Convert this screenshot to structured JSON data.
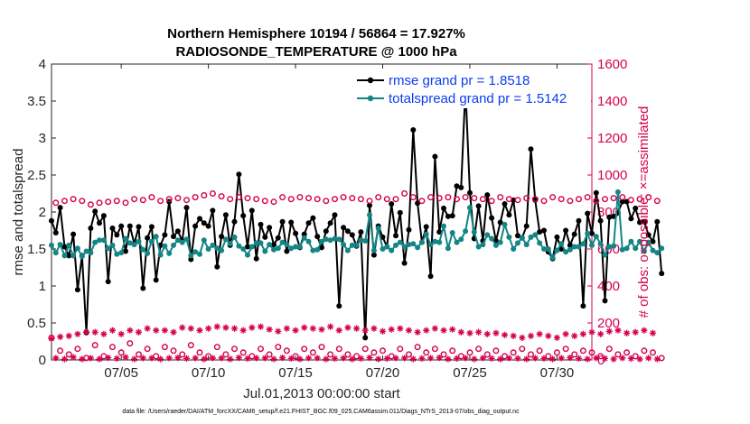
{
  "chart_data": {
    "type": "line",
    "title": "Northern Hemisphere 10194 / 56864 = 17.927%",
    "subtitle": "RADIOSONDE_TEMPERATURE @ 1000 hPa",
    "xlabel": "Jul.01,2013 00:00:00 start",
    "ylabel_left": "rmse and totalspread",
    "ylabel_right": "# of obs: o=possible; ×=assimilated",
    "x_range_days": [
      1.0,
      32.0
    ],
    "y_left_lim": [
      0,
      4
    ],
    "y_right_lim": [
      0,
      1600
    ],
    "x_ticks": [
      {
        "day": 5,
        "label": "07/05"
      },
      {
        "day": 10,
        "label": "07/10"
      },
      {
        "day": 15,
        "label": "07/15"
      },
      {
        "day": 20,
        "label": "07/20"
      },
      {
        "day": 25,
        "label": "07/25"
      },
      {
        "day": 30,
        "label": "07/30"
      }
    ],
    "y_left_ticks": [
      "0",
      "0.5",
      "1",
      "1.5",
      "2",
      "2.5",
      "3",
      "3.5",
      "4"
    ],
    "y_right_ticks": [
      "0",
      "200",
      "400",
      "600",
      "800",
      "1000",
      "1200",
      "1400",
      "1600"
    ],
    "x_start_day": 1.0,
    "x_step_days": 0.25,
    "series": [
      {
        "name": "rmse grand pr = 1.8518",
        "axis": "left",
        "color": "#000000",
        "marker": "filled-circle",
        "values": [
          1.88,
          1.72,
          2.06,
          1.53,
          1.41,
          1.7,
          0.95,
          1.41,
          0.37,
          1.78,
          2.01,
          1.85,
          1.95,
          1.06,
          1.78,
          1.69,
          1.81,
          1.47,
          1.81,
          1.57,
          1.8,
          0.97,
          1.65,
          1.8,
          1.08,
          1.55,
          1.69,
          2.14,
          1.67,
          1.74,
          1.61,
          2.06,
          1.36,
          1.81,
          1.91,
          1.85,
          1.81,
          2.02,
          1.26,
          1.67,
          1.96,
          1.55,
          1.87,
          2.51,
          1.95,
          1.53,
          2.02,
          1.37,
          1.83,
          1.66,
          1.79,
          1.56,
          1.65,
          1.87,
          1.47,
          1.86,
          1.71,
          1.52,
          1.7,
          1.85,
          1.92,
          1.67,
          1.52,
          1.74,
          1.85,
          1.96,
          0.73,
          1.79,
          1.74,
          1.69,
          1.54,
          1.73,
          0.3,
          2.09,
          1.42,
          1.81,
          1.66,
          1.53,
          2.11,
          1.68,
          1.99,
          1.31,
          1.76,
          3.11,
          2.12,
          1.59,
          1.8,
          1.13,
          2.75,
          1.73,
          2.05,
          1.94,
          1.95,
          2.35,
          2.33,
          3.68,
          2.26,
          1.64,
          2.08,
          1.61,
          2.23,
          1.92,
          1.61,
          1.86,
          2.11,
          1.96,
          2.16,
          1.68,
          1.65,
          1.81,
          2.85,
          2.16,
          1.73,
          1.75,
          1.46,
          1.37,
          1.66,
          1.5,
          1.75,
          1.55,
          1.7,
          1.88,
          0.73,
          1.98,
          1.71,
          2.26,
          1.88,
          0.8,
          1.93,
          1.94,
          1.99,
          2.14,
          2.14,
          1.91,
          2.05,
          1.86,
          1.87,
          1.69,
          1.6,
          1.87,
          1.17
        ]
      },
      {
        "name": "totalspread grand pr = 1.5142",
        "axis": "left",
        "color": "#148585",
        "marker": "filled-circle",
        "values": [
          1.55,
          1.45,
          1.56,
          1.41,
          1.55,
          1.41,
          1.51,
          1.4,
          1.47,
          1.45,
          1.59,
          1.62,
          1.62,
          1.51,
          1.55,
          1.43,
          1.45,
          1.64,
          1.58,
          1.56,
          1.6,
          1.49,
          1.44,
          1.6,
          1.67,
          1.42,
          1.54,
          1.44,
          1.55,
          1.62,
          1.59,
          1.63,
          1.41,
          1.46,
          1.43,
          1.62,
          1.5,
          1.55,
          1.51,
          1.48,
          1.63,
          1.57,
          1.66,
          1.54,
          1.5,
          1.42,
          1.53,
          1.58,
          1.58,
          1.47,
          1.56,
          1.49,
          1.51,
          1.59,
          1.56,
          1.51,
          1.53,
          1.53,
          1.65,
          1.6,
          1.48,
          1.49,
          1.6,
          1.63,
          1.62,
          1.64,
          1.63,
          1.56,
          1.48,
          1.55,
          1.55,
          1.62,
          1.61,
          1.96,
          1.48,
          1.78,
          1.5,
          1.53,
          1.48,
          1.55,
          1.59,
          1.53,
          1.56,
          1.57,
          1.52,
          1.59,
          1.7,
          1.56,
          1.6,
          1.59,
          1.81,
          1.51,
          1.72,
          1.59,
          1.63,
          1.74,
          2.06,
          1.73,
          1.53,
          1.56,
          1.69,
          1.64,
          1.55,
          1.59,
          1.83,
          1.66,
          1.5,
          1.58,
          1.65,
          1.56,
          1.66,
          1.69,
          1.58,
          1.5,
          1.5,
          1.38,
          1.48,
          1.57,
          1.46,
          1.49,
          1.53,
          1.53,
          1.57,
          1.71,
          1.55,
          1.67,
          1.57,
          1.42,
          1.53,
          1.54,
          2.27,
          1.49,
          1.51,
          1.6,
          1.51,
          1.6,
          1.47,
          1.59,
          1.48,
          1.45,
          1.51
        ]
      },
      {
        "name": "# possible",
        "axis": "right",
        "color": "#d6004f",
        "marker": "open-circle",
        "values": [
          120,
          850,
          50,
          860,
          30,
          870,
          60,
          860,
          10,
          840,
          80,
          850,
          20,
          855,
          70,
          860,
          40,
          850,
          90,
          870,
          30,
          865,
          60,
          880,
          20,
          860,
          70,
          870,
          50,
          875,
          30,
          865,
          80,
          880,
          40,
          890,
          20,
          900,
          70,
          885,
          30,
          870,
          60,
          880,
          40,
          875,
          20,
          870,
          60,
          860,
          30,
          855,
          70,
          880,
          50,
          870,
          20,
          880,
          60,
          875,
          40,
          870,
          70,
          860,
          30,
          870,
          60,
          880,
          30,
          875,
          20,
          870,
          60,
          860,
          40,
          880,
          50,
          870,
          20,
          870,
          60,
          900,
          30,
          880,
          70,
          860,
          40,
          880,
          60,
          875,
          30,
          880,
          50,
          870,
          20,
          880,
          40,
          875,
          60,
          870,
          30,
          860,
          50,
          880,
          20,
          870,
          40,
          865,
          60,
          875,
          30,
          870,
          50,
          860,
          20,
          880,
          40,
          870,
          60,
          860,
          30,
          870,
          50,
          880,
          40,
          860,
          20,
          870,
          60,
          875,
          30,
          880,
          40,
          865,
          20,
          870,
          50,
          880,
          40,
          860,
          10
        ]
      },
      {
        "name": "# assimilated",
        "axis": "right",
        "color": "#d6004f",
        "marker": "asterisk",
        "values": [
          115,
          10,
          125,
          5,
          130,
          15,
          140,
          5,
          150,
          10,
          150,
          5,
          140,
          12,
          160,
          8,
          140,
          15,
          160,
          5,
          150,
          10,
          170,
          10,
          160,
          5,
          160,
          10,
          150,
          12,
          175,
          8,
          170,
          10,
          160,
          5,
          170,
          10,
          180,
          10,
          175,
          5,
          170,
          12,
          160,
          8,
          175,
          10,
          180,
          10,
          165,
          5,
          155,
          12,
          170,
          8,
          160,
          5,
          175,
          10,
          170,
          10,
          165,
          5,
          180,
          8,
          160,
          10,
          175,
          5,
          170,
          8,
          160,
          12,
          170,
          5,
          155,
          8,
          165,
          10,
          170,
          10,
          160,
          5,
          150,
          8,
          160,
          10,
          170,
          12,
          160,
          5,
          165,
          8,
          150,
          10,
          145,
          5,
          150,
          10,
          140,
          8,
          145,
          5,
          135,
          10,
          130,
          8,
          120,
          5,
          130,
          10,
          140,
          8,
          130,
          5,
          120,
          10,
          140,
          12,
          130,
          8,
          140,
          5,
          150,
          10,
          140,
          8,
          155,
          5,
          160,
          10,
          145,
          8,
          150,
          5,
          160,
          10,
          145,
          5
        ]
      }
    ],
    "legend": [
      {
        "label": "rmse grand pr = 1.8518",
        "color": "#000000"
      },
      {
        "label": "totalspread grand pr = 1.5142",
        "color": "#148585"
      }
    ],
    "legend_position": "top-right",
    "grid": false
  },
  "footer": "data file: /Users/raeder/DAI/ATM_forcXX/CAM6_setup/f.e21.FHIST_BGC.f09_025.CAM6assim.011/Diags_NTrS_2013-07/obs_diag_output.nc"
}
